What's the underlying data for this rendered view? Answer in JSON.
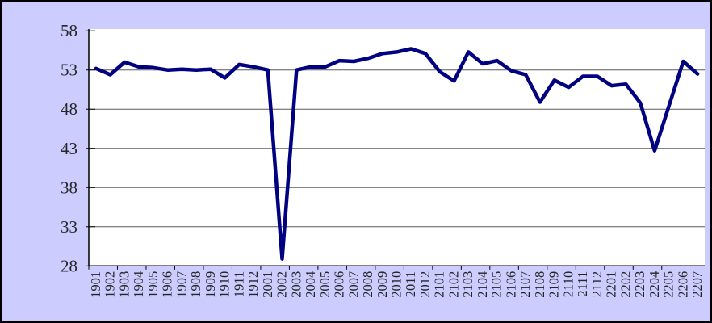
{
  "chart": {
    "background_color": "#ccccff",
    "plot_background_color": "#ffffff",
    "line_color": "#000080",
    "gridline_color": "#5a5a5a",
    "axis_color": "#000000",
    "label_color": "#262626"
  },
  "chart_data": {
    "type": "line",
    "title": "",
    "xlabel": "",
    "ylabel": "",
    "categories": [
      "1901",
      "1902",
      "1903",
      "1904",
      "1905",
      "1906",
      "1907",
      "1908",
      "1909",
      "1910",
      "1911",
      "1912",
      "2001",
      "2002",
      "2003",
      "2004",
      "2005",
      "2006",
      "2007",
      "2008",
      "2009",
      "2010",
      "2011",
      "2012",
      "2101",
      "2102",
      "2103",
      "2104",
      "2105",
      "2106",
      "2107",
      "2108",
      "2109",
      "2110",
      "2111",
      "2112",
      "2201",
      "2202",
      "2203",
      "2204",
      "2205",
      "2206",
      "2207"
    ],
    "values": [
      53.2,
      52.4,
      54.0,
      53.4,
      53.3,
      53.0,
      53.1,
      53.0,
      53.1,
      52.0,
      53.7,
      53.4,
      53.0,
      28.9,
      53.0,
      53.4,
      53.4,
      54.2,
      54.1,
      54.5,
      55.1,
      55.3,
      55.7,
      55.1,
      52.8,
      51.6,
      55.3,
      53.8,
      54.2,
      52.9,
      52.4,
      48.9,
      51.7,
      50.8,
      52.2,
      52.2,
      51.0,
      51.2,
      48.8,
      42.7,
      48.4,
      54.1,
      52.5
    ],
    "ylim": [
      28,
      58
    ],
    "yticks": [
      28,
      33,
      38,
      43,
      48,
      53,
      58
    ],
    "grid": "horizontal",
    "legend": "none",
    "x_tick_interval": 2,
    "x_label_rotation_deg": -90
  }
}
